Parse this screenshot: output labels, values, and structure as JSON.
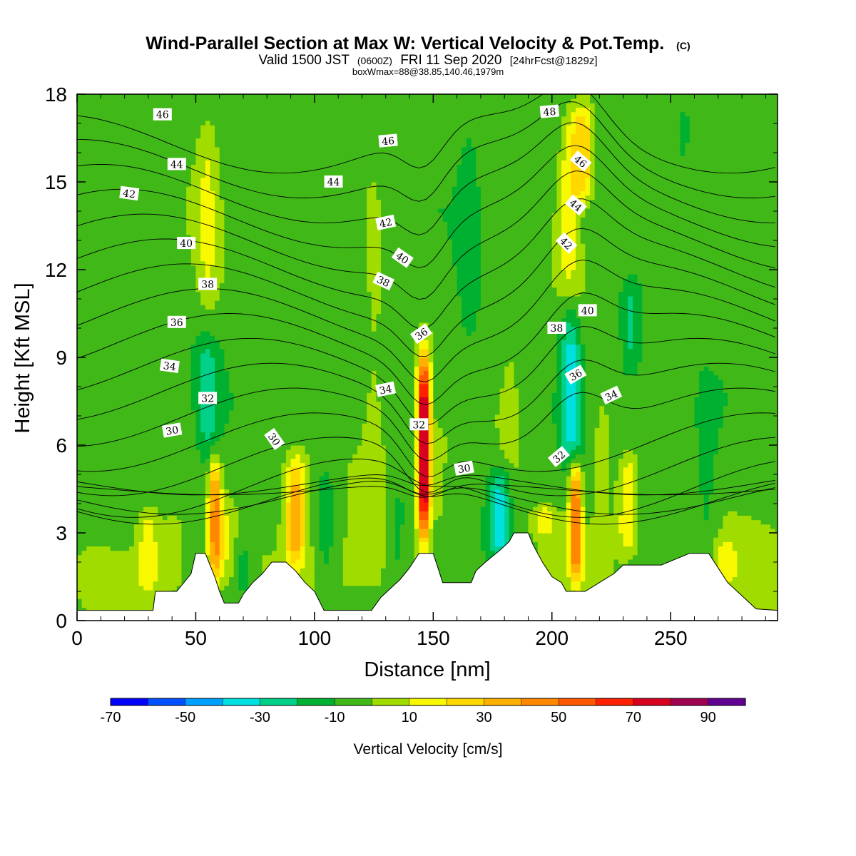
{
  "chart_data": {
    "type": "heatmap",
    "title": "Wind-Parallel Section at Max W: Vertical Velocity & Pot.Temp.",
    "title_mark": "(C)",
    "subtitle_parts": [
      "Valid 1500 JST",
      "(0600Z)",
      "FRI 11 Sep 2020",
      "[24hrFcst@1829z]"
    ],
    "note": "boxWmax=88@38.85,140.46,1979m",
    "xlabel": "Distance [nm]",
    "ylabel": "Height [Kft MSL]",
    "xlim": [
      0,
      295
    ],
    "ylim": [
      0,
      18
    ],
    "xticks": [
      0,
      50,
      100,
      150,
      200,
      250
    ],
    "yticks": [
      0,
      3,
      6,
      9,
      12,
      15,
      18
    ],
    "colorbar": {
      "title": "Vertical Velocity [cm/s]",
      "range": [
        -70,
        100
      ],
      "step": 10,
      "tick_labels": [
        -70,
        -50,
        -30,
        -10,
        10,
        30,
        50,
        70,
        90
      ],
      "colors": [
        "#0000ff",
        "#0050ff",
        "#00a0ff",
        "#00e0e0",
        "#00d088",
        "#00b030",
        "#40b818",
        "#a0dc00",
        "#f8f800",
        "#ffd800",
        "#ffb000",
        "#ff8800",
        "#ff5800",
        "#ff2000",
        "#d80020",
        "#a00050",
        "#600090"
      ]
    },
    "background_value": -5,
    "updrafts": [
      {
        "x": 30,
        "z0": 0.8,
        "z1": 4.2,
        "peak": 20
      },
      {
        "x": 40,
        "z0": 1.0,
        "z1": 4.0,
        "peak": 8
      },
      {
        "x": 55,
        "z0": 10.0,
        "z1": 18.0,
        "peak": 15
      },
      {
        "x": 58,
        "z0": 1.0,
        "z1": 6.0,
        "peak": 45
      },
      {
        "x": 62,
        "z0": 1.0,
        "z1": 4.5,
        "peak": 12
      },
      {
        "x": 92,
        "z0": 1.5,
        "z1": 6.0,
        "peak": 40
      },
      {
        "x": 125,
        "z0": 2.0,
        "z1": 17.0,
        "peak": 8
      },
      {
        "x": 146,
        "z0": 2.3,
        "z1": 9.6,
        "peak": 95
      },
      {
        "x": 152,
        "z0": 3.0,
        "z1": 7.0,
        "peak": 10
      },
      {
        "x": 183,
        "z0": 3.0,
        "z1": 14.0,
        "peak": 5
      },
      {
        "x": 197,
        "z0": 2.8,
        "z1": 4.0,
        "peak": 20
      },
      {
        "x": 210,
        "z0": 1.0,
        "z1": 5.8,
        "peak": 55
      },
      {
        "x": 207,
        "z0": 11.0,
        "z1": 18.0,
        "peak": 22
      },
      {
        "x": 213,
        "z0": 14.0,
        "z1": 18.0,
        "peak": 35
      },
      {
        "x": 221,
        "z0": 2.0,
        "z1": 8.0,
        "peak": 12
      },
      {
        "x": 232,
        "z0": 2.0,
        "z1": 6.0,
        "peak": 28
      },
      {
        "x": 80,
        "z0": 11.0,
        "z1": 17.0,
        "peak": 4
      },
      {
        "x": 273,
        "z0": 1.0,
        "z1": 3.0,
        "peak": 12
      }
    ],
    "downdrafts": [
      {
        "x": 55,
        "z0": 5.0,
        "z1": 10.0,
        "peak": -18
      },
      {
        "x": 70,
        "z0": 0.5,
        "z1": 3.0,
        "peak": -12
      },
      {
        "x": 105,
        "z0": 0.5,
        "z1": 6.0,
        "peak": -12
      },
      {
        "x": 135,
        "z0": 1.0,
        "z1": 5.0,
        "peak": -12
      },
      {
        "x": 178,
        "z0": 1.8,
        "z1": 5.5,
        "peak": -30
      },
      {
        "x": 208,
        "z0": 5.0,
        "z1": 11.0,
        "peak": -32
      },
      {
        "x": 233,
        "z0": 8.0,
        "z1": 12.0,
        "peak": -18
      },
      {
        "x": 265,
        "z0": 1.5,
        "z1": 8.0,
        "peak": -10
      },
      {
        "x": 165,
        "z0": 8.0,
        "z1": 18.0,
        "peak": -10
      },
      {
        "x": 255,
        "z0": 12.0,
        "z1": 18.0,
        "peak": -8
      }
    ],
    "terrain": [
      [
        0,
        0.35
      ],
      [
        14,
        0.35
      ],
      [
        32,
        0.35
      ],
      [
        33,
        1.0
      ],
      [
        42,
        1.0
      ],
      [
        45,
        1.3
      ],
      [
        48,
        1.6
      ],
      [
        50,
        2.3
      ],
      [
        54,
        2.3
      ],
      [
        56,
        1.9
      ],
      [
        58,
        1.5
      ],
      [
        60,
        1.0
      ],
      [
        62,
        0.6
      ],
      [
        68,
        0.6
      ],
      [
        70,
        0.9
      ],
      [
        74,
        1.3
      ],
      [
        78,
        1.6
      ],
      [
        82,
        2.0
      ],
      [
        88,
        2.0
      ],
      [
        92,
        1.7
      ],
      [
        96,
        1.3
      ],
      [
        100,
        1.0
      ],
      [
        104,
        0.35
      ],
      [
        124,
        0.35
      ],
      [
        128,
        0.8
      ],
      [
        132,
        1.1
      ],
      [
        136,
        1.4
      ],
      [
        140,
        1.8
      ],
      [
        144,
        2.3
      ],
      [
        150,
        2.3
      ],
      [
        152,
        1.8
      ],
      [
        154,
        1.3
      ],
      [
        166,
        1.3
      ],
      [
        168,
        1.7
      ],
      [
        172,
        2.0
      ],
      [
        178,
        2.4
      ],
      [
        182,
        2.7
      ],
      [
        184,
        3.0
      ],
      [
        190,
        3.0
      ],
      [
        192,
        2.6
      ],
      [
        196,
        2.0
      ],
      [
        200,
        1.5
      ],
      [
        204,
        1.3
      ],
      [
        206,
        1.0
      ],
      [
        214,
        1.0
      ],
      [
        220,
        1.3
      ],
      [
        226,
        1.6
      ],
      [
        230,
        1.9
      ],
      [
        246,
        1.9
      ],
      [
        258,
        2.3
      ],
      [
        266,
        2.3
      ],
      [
        270,
        1.8
      ],
      [
        274,
        1.3
      ],
      [
        278,
        1.0
      ],
      [
        282,
        0.7
      ],
      [
        286,
        0.4
      ],
      [
        295,
        0.35
      ]
    ],
    "theta_contours": {
      "levels": [
        30,
        31,
        32,
        33,
        34,
        35,
        36,
        37,
        38,
        39,
        40,
        41,
        42,
        43,
        44,
        45,
        46,
        47,
        48
      ],
      "labels": [
        {
          "text": "46",
          "x": 36,
          "z": 17.3,
          "angle": 0
        },
        {
          "text": "44",
          "x": 42,
          "z": 15.6,
          "angle": 0
        },
        {
          "text": "42",
          "x": 22,
          "z": 14.6,
          "angle": 8
        },
        {
          "text": "40",
          "x": 46,
          "z": 12.9,
          "angle": 0
        },
        {
          "text": "38",
          "x": 55,
          "z": 11.5,
          "angle": 0
        },
        {
          "text": "36",
          "x": 42,
          "z": 10.2,
          "angle": 0
        },
        {
          "text": "34",
          "x": 39,
          "z": 8.7,
          "angle": 8
        },
        {
          "text": "32",
          "x": 55,
          "z": 7.6,
          "angle": 0
        },
        {
          "text": "30",
          "x": 40,
          "z": 6.5,
          "angle": -10
        },
        {
          "text": "30",
          "x": 83,
          "z": 6.2,
          "angle": 55
        },
        {
          "text": "44",
          "x": 108,
          "z": 15.0,
          "angle": 0
        },
        {
          "text": "46",
          "x": 131,
          "z": 16.4,
          "angle": -5
        },
        {
          "text": "42",
          "x": 130,
          "z": 13.6,
          "angle": -12
        },
        {
          "text": "40",
          "x": 137,
          "z": 12.4,
          "angle": 35
        },
        {
          "text": "38",
          "x": 129,
          "z": 11.6,
          "angle": 25
        },
        {
          "text": "36",
          "x": 145,
          "z": 9.8,
          "angle": -35
        },
        {
          "text": "34",
          "x": 130,
          "z": 7.9,
          "angle": -12
        },
        {
          "text": "32",
          "x": 144,
          "z": 6.7,
          "angle": 0
        },
        {
          "text": "30",
          "x": 163,
          "z": 5.2,
          "angle": -10
        },
        {
          "text": "48",
          "x": 199,
          "z": 17.4,
          "angle": -5
        },
        {
          "text": "46",
          "x": 212,
          "z": 15.7,
          "angle": 40
        },
        {
          "text": "44",
          "x": 210,
          "z": 14.2,
          "angle": 40
        },
        {
          "text": "42",
          "x": 206,
          "z": 12.9,
          "angle": 45
        },
        {
          "text": "40",
          "x": 215,
          "z": 10.6,
          "angle": 0
        },
        {
          "text": "38",
          "x": 202,
          "z": 10.0,
          "angle": 0
        },
        {
          "text": "36",
          "x": 210,
          "z": 8.4,
          "angle": -30
        },
        {
          "text": "34",
          "x": 225,
          "z": 7.7,
          "angle": -25
        },
        {
          "text": "32",
          "x": 203,
          "z": 5.6,
          "angle": -40
        }
      ]
    }
  }
}
